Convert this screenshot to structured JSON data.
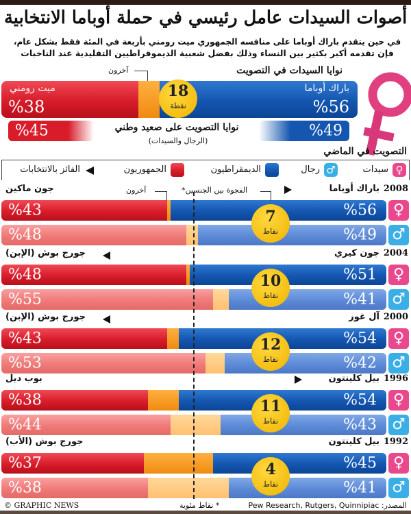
{
  "title": "أصوات السيدات عامل رئيسي في حملة أوباما الانتخابية",
  "subtitle_line1": "في حين يتقدم باراك أوباما على منافسه الجمهوري ميت رومني بأربعة في المئة فقط بشكل عام،",
  "subtitle_line2": "فإن تقدمه أكبر بكثير بين النساء وذلك بفضل شعبية الديموقراطيين التقليدية عند الناخبات",
  "women_intent": {
    "heading": "نوايا السيدات في التصويت",
    "others_label": "آخرون",
    "dem_name": "باراك أوباما",
    "dem_pct": "%56",
    "dem": 56,
    "rep_name": "ميت رومني",
    "rep_pct": "%38",
    "rep": 38,
    "gap": "18",
    "gap_unit": "نقطة"
  },
  "national_intent": {
    "heading": "نوايا التصويت على صعيد وطني",
    "sub": "(الرجال والسيدات)",
    "dem_pct": "%49",
    "rep_pct": "%45"
  },
  "past_heading": "التصويت في الماضي",
  "legend": {
    "women": "سيدات",
    "men": "رجال",
    "dem": "الديمقراطيون",
    "rep": "الجمهوريون",
    "winner": "الفائز بالانتخابات"
  },
  "annotations": {
    "others": "آخرون",
    "gender_gap": "الفجوة بين الجنسين*"
  },
  "colors": {
    "dem": "#1456b0",
    "rep": "#d81c2a",
    "others": "#f08a10",
    "gap": "#f0b400",
    "women": "#e9488c",
    "men": "#3aaee6"
  },
  "elections": [
    {
      "year": "2008",
      "dem_name": "باراك أوباما",
      "rep_name": "جون ماكين",
      "winner": "dem",
      "women": {
        "dem": 56,
        "rep": 43,
        "dem_pct": "%56",
        "rep_pct": "%43"
      },
      "men": {
        "dem": 49,
        "rep": 48,
        "dem_pct": "%49",
        "rep_pct": "%48"
      },
      "gap": "7",
      "gap_unit": "نقاط"
    },
    {
      "year": "2004",
      "dem_name": "جون كيري",
      "rep_name": "جورج بوش (الإبن)",
      "winner": "rep",
      "women": {
        "dem": 51,
        "rep": 48,
        "dem_pct": "%51",
        "rep_pct": "%48"
      },
      "men": {
        "dem": 41,
        "rep": 55,
        "dem_pct": "%41",
        "rep_pct": "%55"
      },
      "gap": "10",
      "gap_unit": "نقاط"
    },
    {
      "year": "2000",
      "dem_name": "آل غور",
      "rep_name": "جورج بوش (الإبن)",
      "winner": "rep",
      "women": {
        "dem": 54,
        "rep": 43,
        "dem_pct": "%54",
        "rep_pct": "%43"
      },
      "men": {
        "dem": 42,
        "rep": 53,
        "dem_pct": "%42",
        "rep_pct": "%53"
      },
      "gap": "12",
      "gap_unit": "نقاط"
    },
    {
      "year": "1996",
      "dem_name": "بيل كلينتون",
      "rep_name": "بوب ديل",
      "winner": "dem",
      "women": {
        "dem": 54,
        "rep": 38,
        "dem_pct": "%54",
        "rep_pct": "%38"
      },
      "men": {
        "dem": 43,
        "rep": 44,
        "dem_pct": "%43",
        "rep_pct": "%44"
      },
      "gap": "11",
      "gap_unit": "نقاط"
    },
    {
      "year": "1992",
      "dem_name": "بيل كلينتون",
      "rep_name": "جورج بوش (الأب)",
      "winner": "",
      "women": {
        "dem": 45,
        "rep": 37,
        "dem_pct": "%45",
        "rep_pct": "%37"
      },
      "men": {
        "dem": 41,
        "rep": 38,
        "dem_pct": "%41",
        "rep_pct": "%38"
      },
      "gap": "4",
      "gap_unit": "نقاط"
    }
  ],
  "footer": {
    "source": "المصدر: Pew Research, Rutgers, Quinnipiac",
    "note": "* نقاط مئوية",
    "credit": "© GRAPHIC NEWS"
  }
}
